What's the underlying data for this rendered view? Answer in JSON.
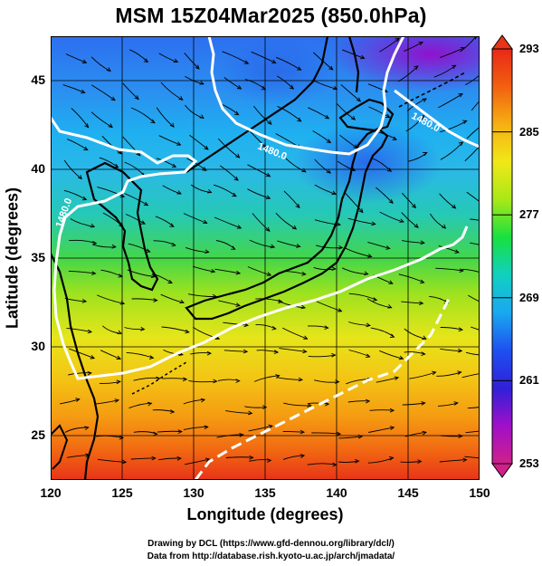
{
  "title": "MSM 15Z04Mar2025 (850.0hPa)",
  "x_axis": {
    "label": "Longitude (degrees)",
    "range": [
      120,
      150
    ],
    "ticks": [
      {
        "value": 120,
        "label": "120"
      },
      {
        "value": 125,
        "label": "125"
      },
      {
        "value": 130,
        "label": "130"
      },
      {
        "value": 135,
        "label": "135"
      },
      {
        "value": 140,
        "label": "140"
      },
      {
        "value": 145,
        "label": "145"
      },
      {
        "value": 150,
        "label": "150"
      }
    ]
  },
  "y_axis": {
    "label": "Latitude  (degrees)",
    "range": [
      22.5,
      47.5
    ],
    "ticks": [
      {
        "value": 25,
        "label": "25"
      },
      {
        "value": 30,
        "label": "30"
      },
      {
        "value": 35,
        "label": "35"
      },
      {
        "value": 40,
        "label": "40"
      },
      {
        "value": 45,
        "label": "45"
      }
    ]
  },
  "colorbar": {
    "min": 253,
    "max": 293,
    "ticks": [
      {
        "value": 293,
        "label": "293"
      },
      {
        "value": 285,
        "label": "285"
      },
      {
        "value": 277,
        "label": "277"
      },
      {
        "value": 269,
        "label": "269"
      },
      {
        "value": 261,
        "label": "261"
      },
      {
        "value": 253,
        "label": "253"
      }
    ],
    "colors": [
      "#d0208a",
      "#a010c8",
      "#3020d8",
      "#1e50f0",
      "#1aa8f0",
      "#10d0c0",
      "#18e040",
      "#a8e818",
      "#f0e818",
      "#f5b014",
      "#f26010",
      "#e82818"
    ]
  },
  "contour_labels": [
    "1480.0",
    "1480.0",
    "1480.0"
  ],
  "credits": [
    "Drawing by DCL (https://www.gfd-dennou.org/library/dcl/)",
    "Data from http://database.rish.kyoto-u.ac.jp/arch/jmadata/"
  ]
}
